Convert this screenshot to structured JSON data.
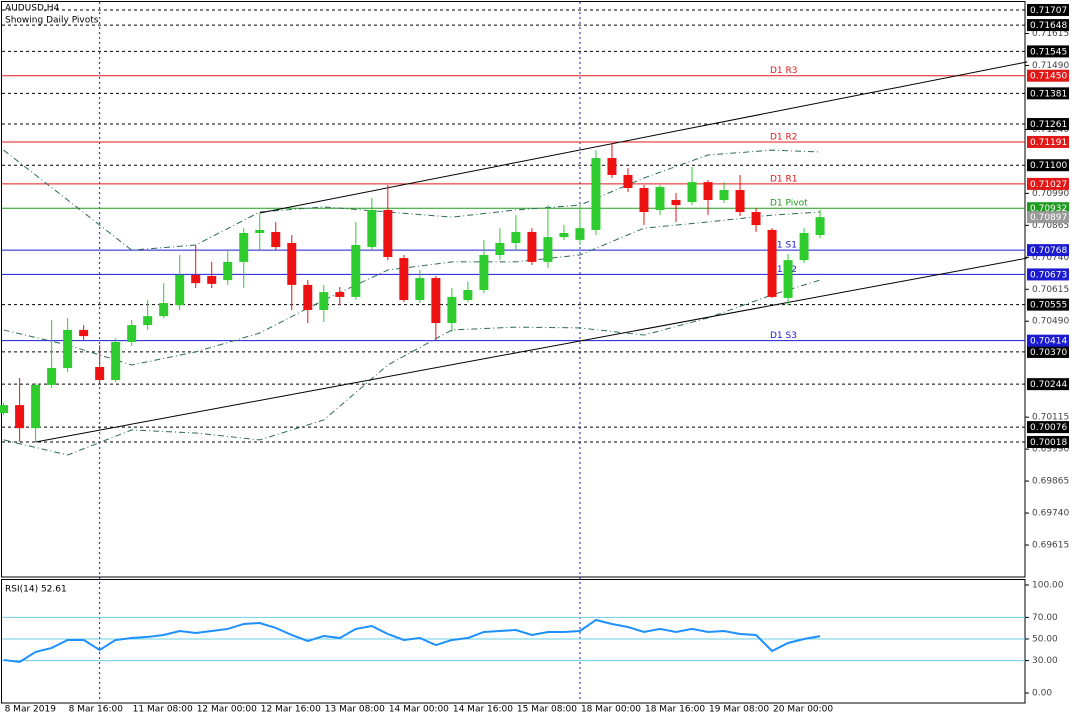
{
  "chart_data": [
    {
      "type": "candlestick",
      "title": "AUDUSD,H4",
      "subtitle": "Showing Daily Pivots",
      "categories": [
        "8 Mar 2019",
        null,
        null,
        null,
        "8 Mar 16:00",
        null,
        null,
        null,
        "11 Mar 08:00",
        null,
        null,
        null,
        "12 Mar 00:00",
        null,
        null,
        null,
        "12 Mar 16:00",
        null,
        null,
        null,
        "13 Mar 08:00",
        null,
        null,
        null,
        "14 Mar 00:00",
        null,
        null,
        null,
        "14 Mar 16:00",
        null,
        null,
        null,
        "15 Mar 08:00",
        null,
        null,
        null,
        "18 Mar 00:00",
        null,
        null,
        null,
        "18 Mar 16:00",
        null,
        null,
        null,
        "19 Mar 08:00",
        null,
        null,
        null,
        "20 Mar 00:00",
        null,
        null,
        null
      ],
      "open": [
        0.70131,
        0.70162,
        0.70072,
        0.70241,
        0.70307,
        0.70456,
        0.70311,
        0.7026,
        0.70409,
        0.70475,
        0.7051,
        0.70553,
        0.70671,
        0.70667,
        0.70651,
        0.70722,
        0.70835,
        0.70839,
        0.70796,
        0.70632,
        0.70534,
        0.70604,
        0.70585,
        0.7078,
        0.70925,
        0.70737,
        0.70573,
        0.70659,
        0.70483,
        0.70573,
        0.70612,
        0.70749,
        0.70796,
        0.70839,
        0.70722,
        0.70819,
        0.70808,
        0.70847,
        0.71128,
        0.71062,
        0.71011,
        0.70925,
        0.70964,
        0.70956,
        0.71034,
        0.70964,
        0.71003,
        0.70917,
        0.70847,
        0.70581,
        0.70729,
        0.70827
      ],
      "high": [
        0.7017,
        0.70268,
        0.70248,
        0.70495,
        0.70503,
        0.70475,
        0.70397,
        0.70424,
        0.70495,
        0.70573,
        0.70639,
        0.70749,
        0.70788,
        0.70722,
        0.70768,
        0.70854,
        0.70913,
        0.70878,
        0.70827,
        0.70651,
        0.70632,
        0.70624,
        0.70878,
        0.70972,
        0.71023,
        0.70749,
        0.7069,
        0.70667,
        0.7062,
        0.70643,
        0.70808,
        0.70854,
        0.70905,
        0.70854,
        0.70944,
        0.70866,
        0.70944,
        0.71159,
        0.71187,
        0.71089,
        0.71023,
        0.71023,
        0.70991,
        0.71093,
        0.71042,
        0.71034,
        0.71062,
        0.70933,
        0.70854,
        0.70753,
        0.70854,
        0.70925
      ],
      "low": [
        0.70123,
        0.70018,
        0.70018,
        0.70229,
        0.70291,
        0.70417,
        0.70252,
        0.70252,
        0.70393,
        0.70456,
        0.70503,
        0.70534,
        0.7062,
        0.7062,
        0.70632,
        0.7062,
        0.70768,
        0.70768,
        0.70534,
        0.70483,
        0.70487,
        0.70553,
        0.70573,
        0.70768,
        0.70729,
        0.70565,
        0.70561,
        0.70417,
        0.70448,
        0.70565,
        0.706,
        0.70729,
        0.70768,
        0.7071,
        0.70698,
        0.70808,
        0.70788,
        0.70827,
        0.7105,
        0.70995,
        0.70866,
        0.70905,
        0.70878,
        0.70944,
        0.70905,
        0.70952,
        0.70901,
        0.70839,
        0.70581,
        0.70553,
        0.70718,
        0.70815
      ],
      "close": [
        0.70162,
        0.70072,
        0.70241,
        0.70307,
        0.70456,
        0.70432,
        0.7026,
        0.70409,
        0.70475,
        0.7051,
        0.70561,
        0.70671,
        0.70639,
        0.70636,
        0.70722,
        0.70835,
        0.70847,
        0.7078,
        0.70632,
        0.70534,
        0.70604,
        0.70585,
        0.70788,
        0.70925,
        0.70741,
        0.70573,
        0.70659,
        0.70483,
        0.70585,
        0.70612,
        0.70749,
        0.70796,
        0.70839,
        0.70722,
        0.70819,
        0.70835,
        0.70854,
        0.71128,
        0.71062,
        0.71011,
        0.70917,
        0.71015,
        0.70944,
        0.71034,
        0.70964,
        0.71003,
        0.70917,
        0.70866,
        0.70585,
        0.70729,
        0.70835,
        0.70897
      ],
      "up_color": "#2ecc2e",
      "down_color": "#ee1111",
      "xlim": [
        -0.1,
        63.8
      ],
      "ylim": [
        0.6949,
        0.71746
      ],
      "yticks": [
        {
          "value": 0.71615,
          "label": "0.71615"
        },
        {
          "value": 0.7149,
          "label": "0.71490"
        },
        {
          "value": 0.7124,
          "label": "0.71240"
        },
        {
          "value": 0.7099,
          "label": "0.70990"
        },
        {
          "value": 0.70865,
          "label": "0.70865"
        },
        {
          "value": 0.7074,
          "label": "0.70740"
        },
        {
          "value": 0.70615,
          "label": "0.70615"
        },
        {
          "value": 0.7049,
          "label": "0.70490"
        },
        {
          "value": 0.70115,
          "label": "0.70115"
        },
        {
          "value": 0.6999,
          "label": "0.69990"
        },
        {
          "value": 0.69865,
          "label": "0.69865"
        },
        {
          "value": 0.6974,
          "label": "0.69740"
        },
        {
          "value": 0.69615,
          "label": "0.69615"
        }
      ],
      "hlines": [
        {
          "value": 0.71707,
          "label": "0.71707"
        },
        {
          "value": 0.71648,
          "label": "0.71648"
        },
        {
          "value": 0.71545,
          "label": "0.71545"
        },
        {
          "value": 0.71381,
          "label": "0.71381"
        },
        {
          "value": 0.71261,
          "label": "0.71261"
        },
        {
          "value": 0.711,
          "label": "0.71100"
        },
        {
          "value": 0.70555,
          "label": "0.70555"
        },
        {
          "value": 0.7037,
          "label": "0.70370"
        },
        {
          "value": 0.70244,
          "label": "0.70244"
        },
        {
          "value": 0.70076,
          "label": "0.70076"
        },
        {
          "value": 0.70018,
          "label": "0.70018"
        }
      ],
      "hline_color": "#000000",
      "pivots": [
        {
          "name": "D1 R3",
          "value": 0.7145,
          "label": "0.71450",
          "color": "#e01818"
        },
        {
          "name": "D1 R2",
          "value": 0.71191,
          "label": "0.71191",
          "color": "#e01818"
        },
        {
          "name": "D1 R1",
          "value": 0.71027,
          "label": "0.71027",
          "color": "#e01818"
        },
        {
          "name": "D1 Pivot",
          "value": 0.70932,
          "label": "0.70932",
          "color": "#1e9a1e"
        },
        {
          "name": "D1 S1",
          "value": 0.70768,
          "label": "0.70768",
          "color": "#1a1ad0"
        },
        {
          "name": "D1 S2",
          "value": 0.70673,
          "label": "0.70673",
          "color": "#1a1ad0"
        },
        {
          "name": "D1 S3",
          "value": 0.70414,
          "label": "0.70414",
          "color": "#1a1ad0"
        }
      ],
      "last_price": {
        "value": 0.70897,
        "label": "0.70897"
      },
      "trendlines": [
        {
          "x": [
            16,
            63.94
          ],
          "values": [
            0.70913,
            0.71504
          ]
        },
        {
          "x": [
            2,
            63.94
          ],
          "values": [
            0.70018,
            0.70737
          ]
        }
      ],
      "trend_color": "#000000",
      "bands": [
        {
          "x": [
            0,
            4,
            8,
            12,
            16,
            20,
            24,
            28,
            32,
            36,
            40,
            44,
            48,
            51
          ],
          "values": [
            0.71159,
            0.70964,
            0.70768,
            0.70788,
            0.70917,
            0.70937,
            0.70917,
            0.70897,
            0.70925,
            0.70944,
            0.7105,
            0.7114,
            0.71159,
            0.71152
          ]
        },
        {
          "x": [
            0,
            4,
            8,
            12,
            16,
            20,
            24,
            28,
            32,
            36,
            40,
            44,
            48,
            51
          ],
          "values": [
            0.70456,
            0.70397,
            0.70319,
            0.7037,
            0.70444,
            0.70573,
            0.7069,
            0.70722,
            0.70722,
            0.70749,
            0.70854,
            0.70878,
            0.70905,
            0.70917
          ]
        },
        {
          "x": [
            0,
            4,
            8,
            12,
            16,
            20,
            24,
            28,
            32,
            36,
            40,
            44,
            48,
            51
          ],
          "values": [
            0.70026,
            0.69967,
            0.70065,
            0.70053,
            0.70026,
            0.70104,
            0.70319,
            0.70456,
            0.70467,
            0.70464,
            0.70436,
            0.70503,
            0.70593,
            0.70651
          ]
        }
      ],
      "band_color": "#2f6a5a",
      "separators": [
        6,
        36
      ]
    },
    {
      "type": "line",
      "title": "RSI(14) 52.61",
      "values": [
        30.6,
        28.7,
        38.0,
        41.7,
        49.1,
        49.1,
        39.8,
        49.1,
        50.9,
        51.9,
        53.7,
        57.4,
        55.6,
        57.4,
        59.3,
        63.9,
        64.8,
        60.2,
        53.7,
        48.1,
        52.8,
        50.9,
        59.3,
        62.0,
        54.6,
        49.1,
        50.9,
        44.4,
        49.1,
        50.9,
        56.5,
        57.4,
        58.3,
        53.7,
        56.5,
        56.5,
        57.4,
        67.6,
        63.9,
        61.1,
        56.5,
        59.3,
        56.5,
        59.3,
        56.5,
        57.4,
        54.6,
        53.7,
        38.9,
        46.3,
        50.0,
        52.61
      ],
      "color": "#1e90ff",
      "xlim": [
        -0.1,
        63.8
      ],
      "ylim": [
        -9.26,
        104.6
      ],
      "yticks": [
        {
          "value": 100,
          "label": "100.00"
        },
        {
          "value": 70,
          "label": "70.00"
        },
        {
          "value": 50,
          "label": "50.00"
        },
        {
          "value": 30,
          "label": "30.00"
        },
        {
          "value": 0,
          "label": "0.00"
        }
      ],
      "levels": [
        70,
        50,
        30
      ],
      "level_color": "#6fd0e6"
    }
  ]
}
